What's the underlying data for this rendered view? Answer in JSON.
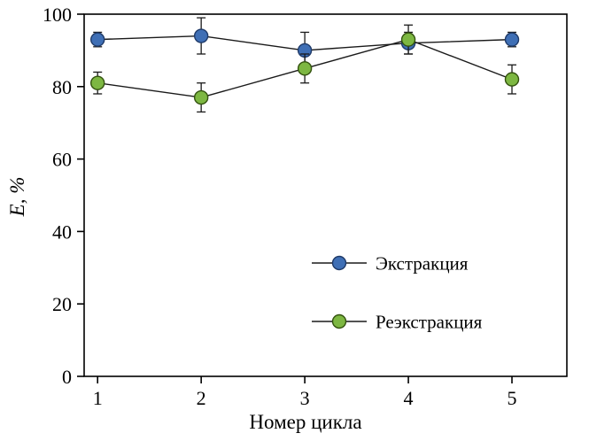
{
  "chart_data": {
    "type": "line",
    "title": "",
    "x": [
      1,
      2,
      3,
      4,
      5
    ],
    "series": [
      {
        "name": "Экстракция",
        "values": [
          93,
          94,
          90,
          92,
          93
        ],
        "errors": [
          2,
          5,
          5,
          3,
          2
        ],
        "marker": "circle",
        "marker_fill": "#3f6fb5",
        "marker_edge": "#1f3a68"
      },
      {
        "name": "Реэкстракция",
        "values": [
          81,
          77,
          85,
          93,
          82
        ],
        "errors": [
          3,
          4,
          4,
          4,
          4
        ],
        "marker": "circle",
        "marker_fill": "#7db742",
        "marker_edge": "#33520f"
      }
    ],
    "xlabel": "Номер цикла",
    "ylabel": "E, %",
    "xlim": [
      0.87,
      5.53
    ],
    "ylim": [
      0,
      100
    ],
    "xticks": [
      1,
      2,
      3,
      4,
      5
    ],
    "yticks": [
      0,
      20,
      40,
      60,
      80,
      100
    ],
    "grid": false,
    "legend_position": "inside-lower-right",
    "line_color": "#1a1a1a",
    "axis_color": "#000000",
    "background_color": "#ffffff"
  }
}
